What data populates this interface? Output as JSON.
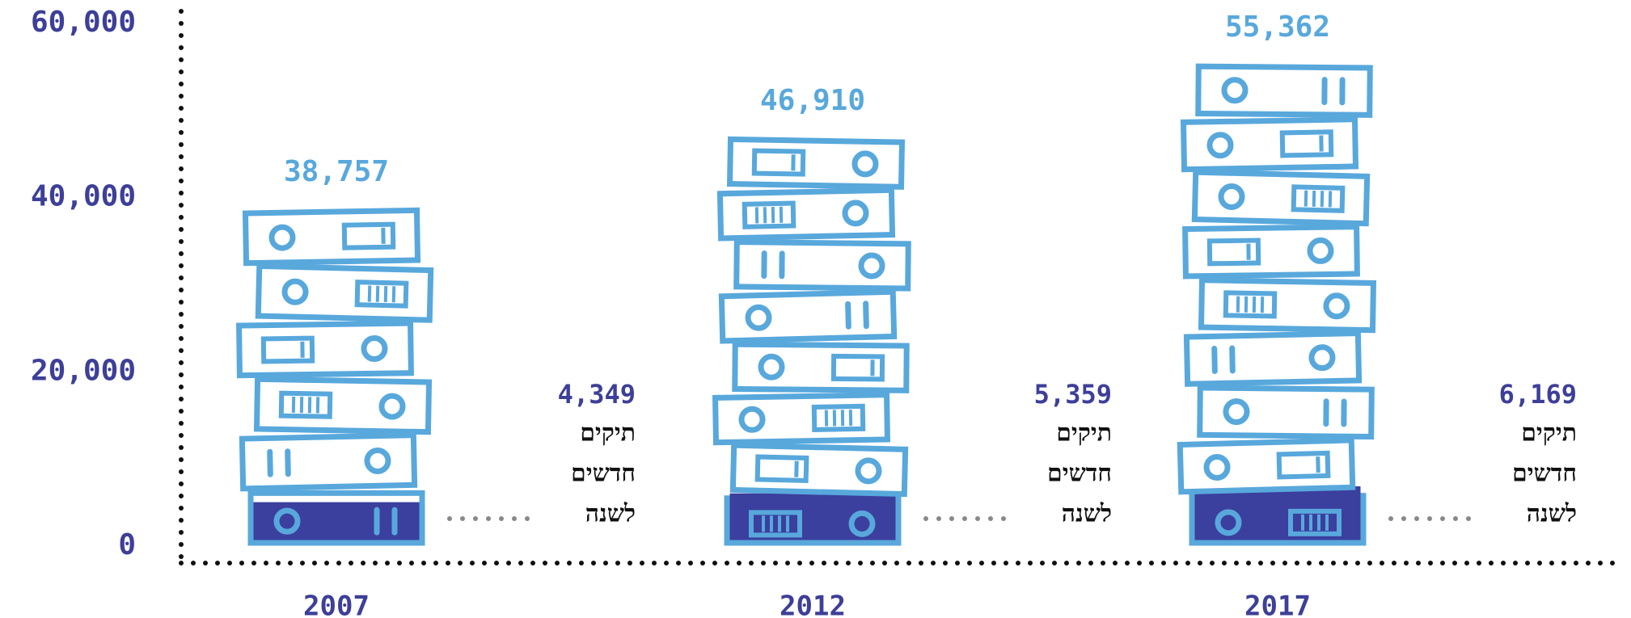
{
  "chart_data": {
    "type": "binder-stack",
    "categories": [
      "2007",
      "2012",
      "2017"
    ],
    "values": [
      38757,
      46910,
      55362
    ],
    "value_labels": [
      "38,757",
      "46,910",
      "55,362"
    ],
    "new_values": [
      4349,
      5359,
      6169
    ],
    "new_value_labels": [
      "4,349",
      "5,359",
      "6,169"
    ],
    "new_label_lines": [
      "תיקים",
      "חדשים",
      "לשנה"
    ],
    "color": "#58a8dc",
    "new_color": "#3b3f9e",
    "axis_color": "#3d3f98",
    "ylim": [
      0,
      60000
    ],
    "yticks": [
      {
        "value": 0,
        "label": "0"
      },
      {
        "value": 20000,
        "label": "20,000"
      },
      {
        "value": 40000,
        "label": "40,000"
      },
      {
        "value": 60000,
        "label": "60,000"
      }
    ]
  }
}
